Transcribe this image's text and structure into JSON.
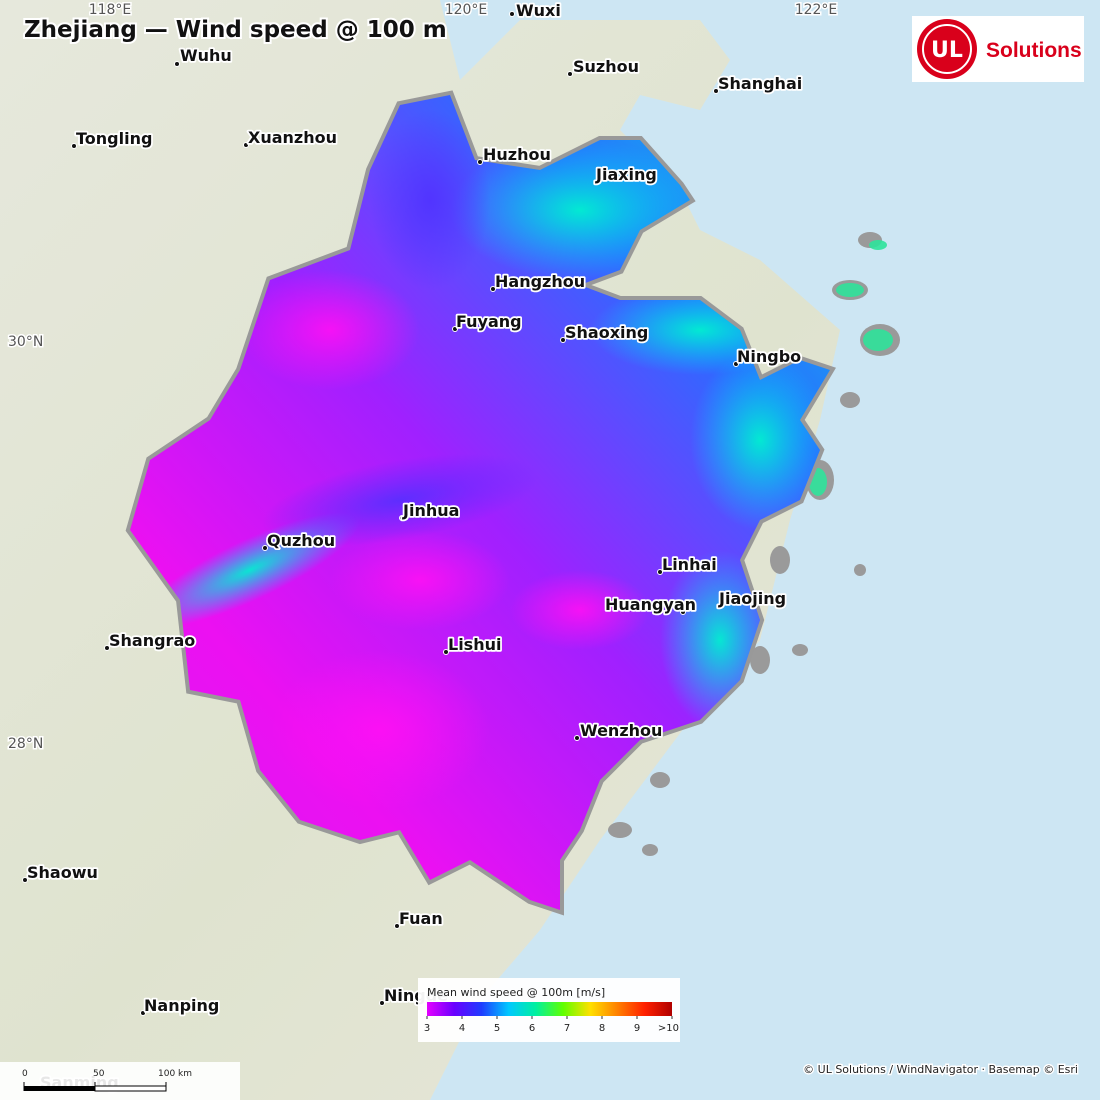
{
  "map": {
    "title": "Zhejiang — Wind speed @ 100 m",
    "graticule": {
      "lon": [
        "118°E",
        "120°E",
        "122°E"
      ],
      "lat": [
        "30°N",
        "28°N"
      ]
    },
    "cities": [
      "Wuxi",
      "Wuhu",
      "Suzhou",
      "Shanghai",
      "Tongling",
      "Xuanzhou",
      "Huzhou",
      "Jiaxing",
      "Hangzhou",
      "Fuyang",
      "Shaoxing",
      "Ningbo",
      "Jinhua",
      "Quzhou",
      "Linhai",
      "Jiaojing",
      "Huangyan",
      "Shangrao",
      "Lishui",
      "Wenzhou",
      "Shaowu",
      "Fuan",
      "Nanping",
      "Ningde",
      "Sanming"
    ],
    "logo": {
      "mark": "UL",
      "text": "Solutions"
    },
    "legend": {
      "title": "Mean wind speed @ 100m  [m/s]",
      "range": [
        3,
        10
      ],
      "ticks": [
        3,
        4,
        5,
        6,
        7,
        8,
        9,
        {
          "value": 10,
          "label": ">10"
        }
      ],
      "colors": [
        "#e400ff",
        "#6a00ff",
        "#1f3cff",
        "#00c8ff",
        "#00f0a0",
        "#60ff00",
        "#ffe000",
        "#ff8000",
        "#ff2000",
        "#b00000"
      ]
    },
    "scale_bar": {
      "ticks": [
        0,
        50,
        {
          "value": 100,
          "label": "100 km"
        }
      ]
    },
    "attribution": "© UL Solutions / WindNavigator · Basemap © Esri"
  }
}
